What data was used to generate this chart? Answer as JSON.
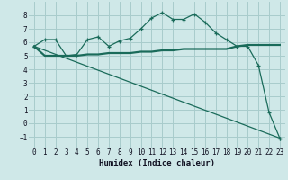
{
  "background_color": "#cfe8e8",
  "grid_color": "#a8cccc",
  "line_color": "#1a6b5a",
  "xlabel": "Humidex (Indice chaleur)",
  "xlim": [
    -0.5,
    23.5
  ],
  "ylim": [
    -1.8,
    9.0
  ],
  "yticks": [
    -1,
    0,
    1,
    2,
    3,
    4,
    5,
    6,
    7,
    8
  ],
  "xticks": [
    0,
    1,
    2,
    3,
    4,
    5,
    6,
    7,
    8,
    9,
    10,
    11,
    12,
    13,
    14,
    15,
    16,
    17,
    18,
    19,
    20,
    21,
    22,
    23
  ],
  "line1_x": [
    0,
    1,
    2,
    3,
    4,
    5,
    6,
    7,
    8,
    9,
    10,
    11,
    12,
    13,
    14,
    15,
    16,
    17,
    18,
    19,
    20,
    21,
    22,
    23
  ],
  "line1_y": [
    5.7,
    6.2,
    6.2,
    5.0,
    5.1,
    6.2,
    6.4,
    5.7,
    6.1,
    6.3,
    7.0,
    7.8,
    8.2,
    7.7,
    7.7,
    8.1,
    7.5,
    6.7,
    6.2,
    5.7,
    5.7,
    4.3,
    0.8,
    -1.1
  ],
  "line2_x": [
    0,
    1,
    2,
    3,
    4,
    5,
    6,
    7,
    8,
    9,
    10,
    11,
    12,
    13,
    14,
    15,
    16,
    17,
    18,
    19,
    20,
    21,
    22,
    23
  ],
  "line2_y": [
    5.7,
    5.0,
    5.0,
    5.0,
    5.0,
    5.1,
    5.1,
    5.2,
    5.2,
    5.2,
    5.3,
    5.3,
    5.4,
    5.4,
    5.5,
    5.5,
    5.5,
    5.5,
    5.5,
    5.7,
    5.8,
    5.8,
    5.8,
    5.8
  ],
  "line3_x": [
    0,
    23
  ],
  "line3_y": [
    5.7,
    -1.1
  ],
  "tick_fontsize": 5.5,
  "xlabel_fontsize": 6.5
}
